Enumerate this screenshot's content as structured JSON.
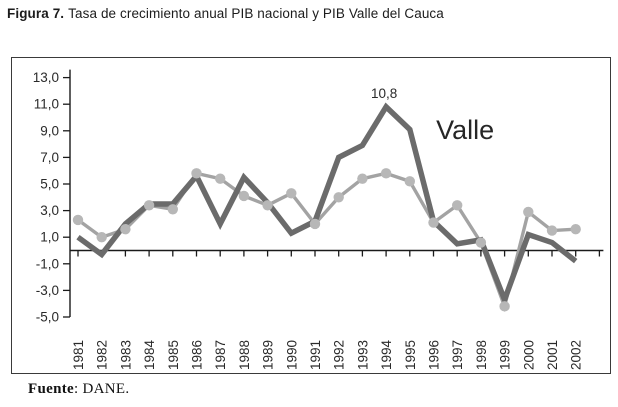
{
  "page": {
    "title_prefix": "Figura 7.",
    "title_text": "Tasa de crecimiento anual PIB nacional y PIB Valle del Cauca",
    "source_prefix": "Fuente",
    "source_text": ": DANE."
  },
  "colors": {
    "valle_line": "#6b6b6b",
    "nacional_line": "#a3a3a3",
    "nacional_marker": "#b7b7b7",
    "axis": "#1a1a1a",
    "tick_label": "#2a2a2a",
    "annotation_text": "#2a2a2a",
    "valle_label_text": "#262626"
  },
  "chart_data": {
    "type": "line",
    "title": "Tasa de crecimiento anual PIB nacional y PIB Valle del Cauca",
    "x": [
      1981,
      1982,
      1983,
      1984,
      1985,
      1986,
      1987,
      1988,
      1989,
      1990,
      1991,
      1992,
      1993,
      1994,
      1995,
      1996,
      1997,
      1998,
      1999,
      2000,
      2001,
      2002
    ],
    "series": [
      {
        "name": "PIB Valle del Cauca",
        "chart_label": "Valle",
        "values": [
          1.0,
          -0.3,
          2.0,
          3.5,
          3.5,
          5.6,
          2.0,
          5.5,
          3.6,
          1.3,
          2.2,
          7.0,
          7.9,
          10.8,
          9.1,
          2.2,
          0.5,
          0.8,
          -3.7,
          1.2,
          0.6,
          -0.8
        ]
      },
      {
        "name": "PIB nacional",
        "chart_label": "",
        "values": [
          2.3,
          1.0,
          1.6,
          3.4,
          3.1,
          5.8,
          5.4,
          4.1,
          3.4,
          4.3,
          2.0,
          4.0,
          5.4,
          5.8,
          5.2,
          2.1,
          3.4,
          0.6,
          -4.2,
          2.9,
          1.5,
          1.6
        ]
      }
    ],
    "annotation": {
      "text": "10,8",
      "x": 1994,
      "value": 10.8
    },
    "series_label_on_chart": {
      "text": "Valle",
      "near_x": 1995,
      "near_value": 9.0
    },
    "ylim": [
      -5.0,
      13.0
    ],
    "yticks": [
      13,
      11,
      9,
      7,
      5,
      3,
      1,
      -1,
      -3,
      -5
    ],
    "ytick_labels": [
      "13,0",
      "11,0",
      "9,0",
      "7,0",
      "5,0",
      "3,0",
      "1,0",
      "-1,0",
      "-3,0",
      "-5,0"
    ],
    "xtick_labels": [
      "1981",
      "1982",
      "1983",
      "1984",
      "1985",
      "1986",
      "1987",
      "1988",
      "1989",
      "1990",
      "1991",
      "1992",
      "1993",
      "1994",
      "1995",
      "1996",
      "1997",
      "1998",
      "1999",
      "2000",
      "2001",
      "2002"
    ],
    "grid": false,
    "legend_position": "none"
  }
}
